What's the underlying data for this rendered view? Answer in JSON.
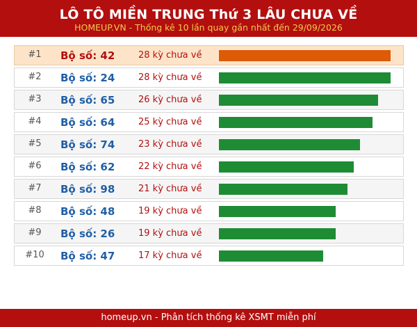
{
  "header": {
    "title": "LÔ TÔ MIỀN TRUNG Thứ 3 LÂU CHƯA VỀ",
    "subtitle": "HOMEUP.VN - Thống kê 10 lần quay gần nhất đến 29/09/2026"
  },
  "colors": {
    "header_bg": "#b30f0f",
    "subtitle": "#f2c94c",
    "top_bar": "#dd5a06",
    "bar": "#1e8c34",
    "pair_text": "#1f5fa6",
    "days_text": "#b30f0f"
  },
  "max_days": 28,
  "rows": [
    {
      "rank": "#1",
      "pair": "Bộ số: 42",
      "days_label": "28 kỳ chưa về",
      "days": 28
    },
    {
      "rank": "#2",
      "pair": "Bộ số: 24",
      "days_label": "28 kỳ chưa về",
      "days": 28
    },
    {
      "rank": "#3",
      "pair": "Bộ số: 65",
      "days_label": "26 kỳ chưa về",
      "days": 26
    },
    {
      "rank": "#4",
      "pair": "Bộ số: 64",
      "days_label": "25 kỳ chưa về",
      "days": 25
    },
    {
      "rank": "#5",
      "pair": "Bộ số: 74",
      "days_label": "23 kỳ chưa về",
      "days": 23
    },
    {
      "rank": "#6",
      "pair": "Bộ số: 62",
      "days_label": "22 kỳ chưa về",
      "days": 22
    },
    {
      "rank": "#7",
      "pair": "Bộ số: 98",
      "days_label": "21 kỳ chưa về",
      "days": 21
    },
    {
      "rank": "#8",
      "pair": "Bộ số: 48",
      "days_label": "19 kỳ chưa về",
      "days": 19
    },
    {
      "rank": "#9",
      "pair": "Bộ số: 26",
      "days_label": "19 kỳ chưa về",
      "days": 19
    },
    {
      "rank": "#10",
      "pair": "Bộ số: 47",
      "days_label": "17 kỳ chưa về",
      "days": 17
    }
  ],
  "footer": {
    "text": "homeup.vn - Phân tích thống kê XSMT miễn phí"
  }
}
